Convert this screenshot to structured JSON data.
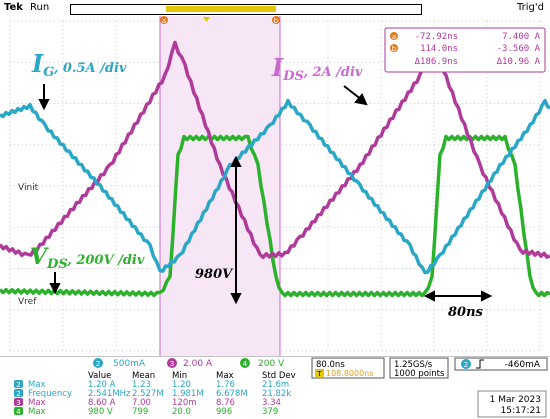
{
  "header": {
    "brand": "Tek",
    "state": "Run",
    "trigger_state": "Trig'd"
  },
  "markers": {
    "a": "a",
    "b": "b"
  },
  "cursor_readout": {
    "a": {
      "time": "-72.92ns",
      "value": "7.400 A"
    },
    "b": {
      "time": "114.0ns",
      "value": "-3.560 A"
    },
    "delta": {
      "time": "Δ186.9ns",
      "value": "Δ10.96 A"
    }
  },
  "annotations": {
    "ig_main": "I",
    "ig_sub": "G",
    "ig_scale": ", 0.5A /div",
    "ids_main": "I",
    "ids_sub": "DS",
    "ids_scale": ", 2A /div",
    "vds_main": "V",
    "vds_sub": "DS",
    "vds_scale": ", 200V /div",
    "vpeak": "980V",
    "period": "80ns"
  },
  "ref_labels": {
    "vinit": "Vinit",
    "vref": "Vref"
  },
  "channels": [
    {
      "num": "2",
      "scale": "500mA",
      "color": "#2aa6c6"
    },
    {
      "num": "3",
      "scale": "2.00 A",
      "color": "#b03a9a"
    },
    {
      "num": "4",
      "scale": "200 V",
      "color": "#2bb12b"
    }
  ],
  "timebase": {
    "scale": "80.0ns",
    "position": "108.8000ns",
    "sample_rate": "1.25GS/s",
    "points": "1000 points"
  },
  "trigger": {
    "channel": "2",
    "level": "-460mA"
  },
  "measurements": {
    "headers": [
      "Value",
      "Mean",
      "Min",
      "Max",
      "Std Dev"
    ],
    "rows": [
      {
        "ch": "2",
        "name": "Max",
        "color": "#2aa6c6",
        "cells": [
          "1.20 A",
          "1.23",
          "1.20",
          "1.76",
          "21.6m"
        ]
      },
      {
        "ch": "2",
        "name": "Frequency",
        "color": "#2aa6c6",
        "cells": [
          "2.541MHz",
          "2.527M",
          "1.981M",
          "6.678M",
          "21.82k"
        ]
      },
      {
        "ch": "3",
        "name": "Max",
        "color": "#b03a9a",
        "cells": [
          "8.60 A",
          "7.00",
          "120m",
          "8.76",
          "3.34"
        ]
      },
      {
        "ch": "4",
        "name": "Max",
        "color": "#2bb12b",
        "cells": [
          "980 V",
          "799",
          "20.0",
          "996",
          "379"
        ]
      }
    ]
  },
  "datetime": {
    "date": "1 Mar 2023",
    "time": "15:17:21"
  }
}
